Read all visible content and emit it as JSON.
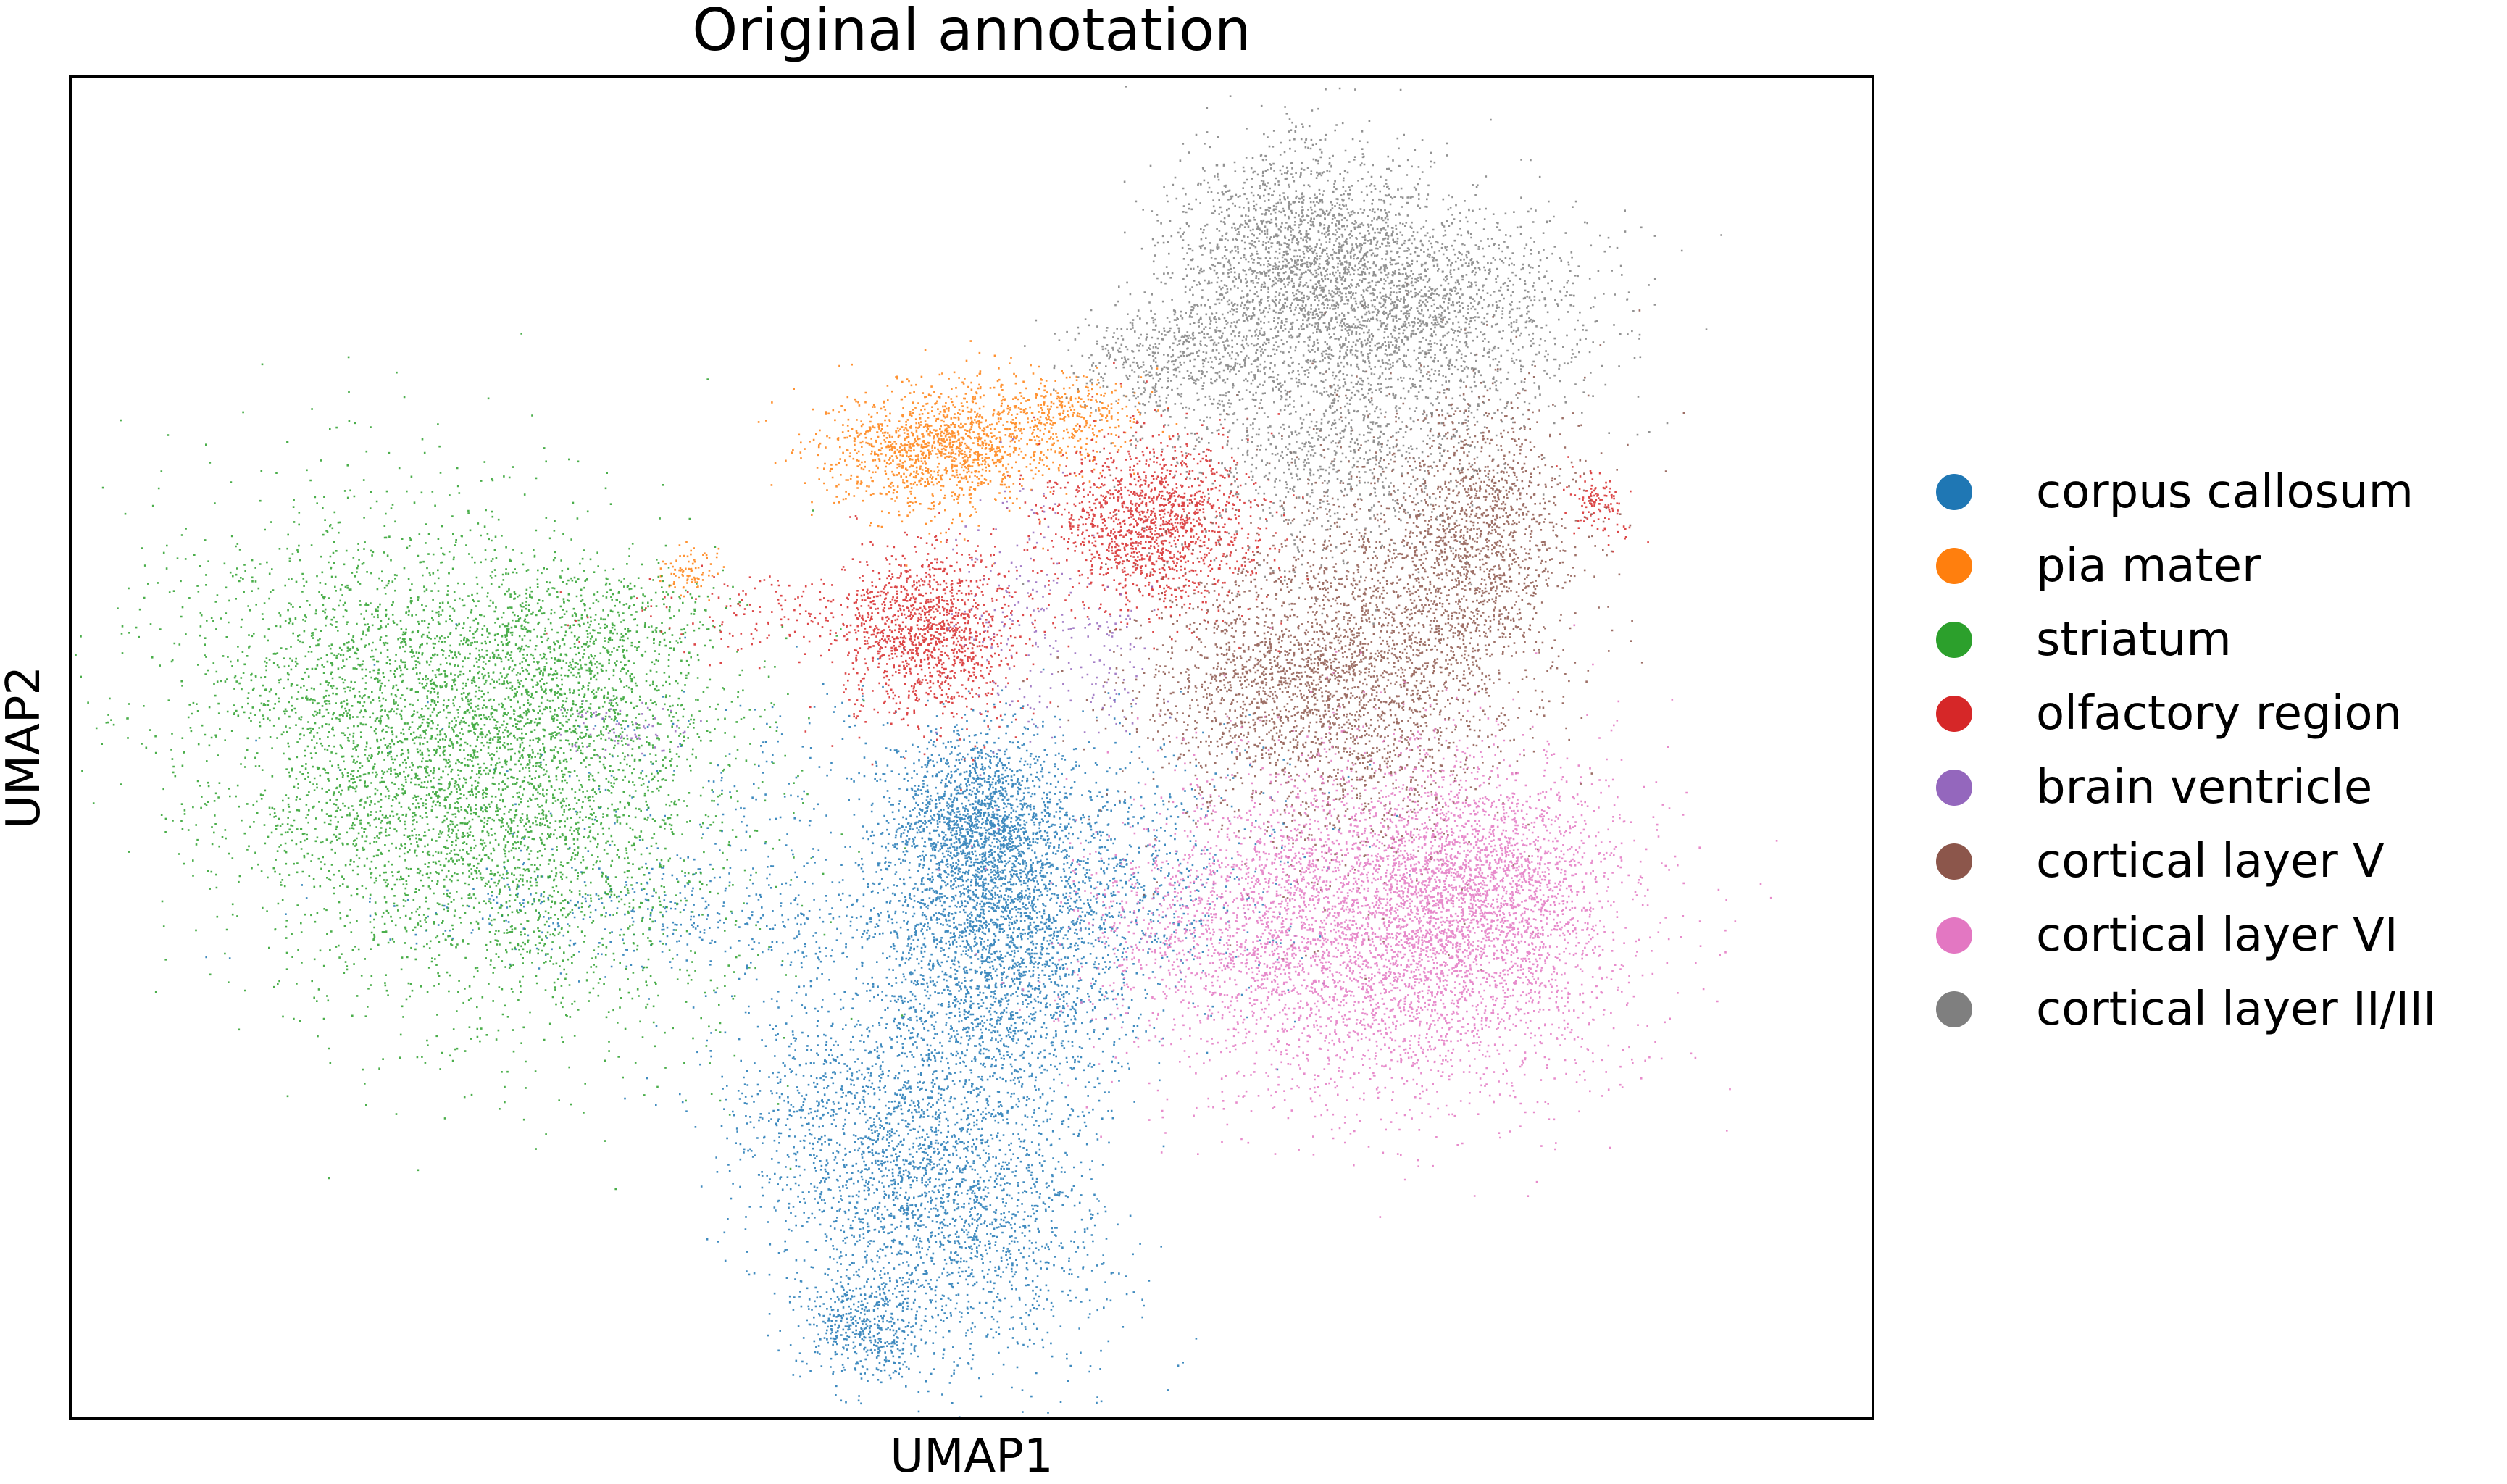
{
  "chart_data": {
    "type": "scatter",
    "title": "Original annotation",
    "xlabel": "UMAP1",
    "ylabel": "UMAP2",
    "xticks": [],
    "yticks": [],
    "xlim": [
      0,
      100
    ],
    "ylim": [
      0,
      100
    ],
    "grid": false,
    "legend_position": "right-outside",
    "series": [
      {
        "name": "corpus callosum",
        "color": "#1f77b4",
        "clusters": [
          {
            "cx": 50.3,
            "cy": 44.2,
            "sx": 2.2,
            "sy": 3.4,
            "rot": 0,
            "n": 1400
          },
          {
            "cx": 51.5,
            "cy": 33.8,
            "sx": 3.5,
            "sy": 6.5,
            "rot": 0,
            "n": 2400
          },
          {
            "cx": 47.8,
            "cy": 16.5,
            "sx": 4.0,
            "sy": 6.2,
            "rot": 0.4,
            "n": 2200
          },
          {
            "cx": 44.0,
            "cy": 6.8,
            "sx": 1.8,
            "sy": 2.0,
            "rot": 0,
            "n": 500
          },
          {
            "cx": 56.5,
            "cy": 40.0,
            "sx": 5.5,
            "sy": 4.5,
            "rot": 0,
            "n": 900
          },
          {
            "cx": 36.5,
            "cy": 37.5,
            "sx": 9.0,
            "sy": 2.0,
            "rot": 0,
            "n": 500
          },
          {
            "cx": 41.5,
            "cy": 24.5,
            "sx": 3.5,
            "sy": 5.0,
            "rot": 0,
            "n": 400
          },
          {
            "cx": 45.0,
            "cy": 46.5,
            "sx": 11.0,
            "sy": 4.0,
            "rot": 0,
            "n": 400
          }
        ]
      },
      {
        "name": "pia mater",
        "color": "#ff7f0e",
        "clusters": [
          {
            "cx": 48.5,
            "cy": 72.6,
            "sx": 3.2,
            "sy": 2.3,
            "rot": 0.15,
            "n": 1400
          },
          {
            "cx": 55.5,
            "cy": 75.0,
            "sx": 2.2,
            "sy": 1.5,
            "rot": 0,
            "n": 300
          },
          {
            "cx": 34.2,
            "cy": 63.0,
            "sx": 0.7,
            "sy": 0.8,
            "rot": 0,
            "n": 90
          }
        ]
      },
      {
        "name": "striatum",
        "color": "#2ca02c",
        "clusters": [
          {
            "cx": 21.5,
            "cy": 48.5,
            "sx": 6.8,
            "sy": 9.5,
            "rot": 0.35,
            "n": 5200
          },
          {
            "cx": 27.0,
            "cy": 55.0,
            "sx": 4.5,
            "sy": 4.0,
            "rot": 0,
            "n": 800
          },
          {
            "cx": 30.0,
            "cy": 60.0,
            "sx": 3.0,
            "sy": 1.8,
            "rot": 0,
            "n": 150
          }
        ]
      },
      {
        "name": "olfactory region",
        "color": "#d62728",
        "clusters": [
          {
            "cx": 47.5,
            "cy": 58.5,
            "sx": 2.5,
            "sy": 3.3,
            "rot": 0,
            "n": 1300
          },
          {
            "cx": 60.0,
            "cy": 66.5,
            "sx": 2.8,
            "sy": 3.3,
            "rot": 0.3,
            "n": 1500
          },
          {
            "cx": 84.8,
            "cy": 68.2,
            "sx": 0.7,
            "sy": 1.3,
            "rot": 0.4,
            "n": 120
          },
          {
            "cx": 41.0,
            "cy": 60.0,
            "sx": 5.5,
            "sy": 1.5,
            "rot": 0,
            "n": 200
          }
        ]
      },
      {
        "name": "brain ventricle",
        "color": "#9467bd",
        "clusters": [
          {
            "cx": 52.5,
            "cy": 60.0,
            "sx": 1.5,
            "sy": 5.0,
            "rot": 0,
            "n": 160
          },
          {
            "cx": 57.5,
            "cy": 57.0,
            "sx": 1.5,
            "sy": 3.0,
            "rot": 0,
            "n": 90
          },
          {
            "cx": 30.5,
            "cy": 51.5,
            "sx": 2.0,
            "sy": 1.2,
            "rot": 0,
            "n": 70
          }
        ]
      },
      {
        "name": "cortical layer V",
        "color": "#8c564b",
        "clusters": [
          {
            "cx": 73.0,
            "cy": 58.0,
            "sx": 4.5,
            "sy": 8.0,
            "rot": -0.2,
            "n": 2600
          },
          {
            "cx": 66.5,
            "cy": 54.5,
            "sx": 4.0,
            "sy": 4.5,
            "rot": 0,
            "n": 1100
          },
          {
            "cx": 78.5,
            "cy": 66.0,
            "sx": 2.2,
            "sy": 4.5,
            "rot": 0,
            "n": 900
          }
        ]
      },
      {
        "name": "cortical layer VI",
        "color": "#e377c2",
        "clusters": [
          {
            "cx": 73.5,
            "cy": 36.5,
            "sx": 6.5,
            "sy": 6.5,
            "rot": 0,
            "n": 4600
          },
          {
            "cx": 78.5,
            "cy": 40.0,
            "sx": 3.0,
            "sy": 4.0,
            "rot": 0,
            "n": 1200
          },
          {
            "cx": 63.5,
            "cy": 37.0,
            "sx": 4.0,
            "sy": 4.0,
            "rot": 0,
            "n": 600
          }
        ]
      },
      {
        "name": "cortical layer II/III",
        "color": "#7f7f7f",
        "clusters": [
          {
            "cx": 68.0,
            "cy": 86.5,
            "sx": 3.5,
            "sy": 4.5,
            "rot": 0,
            "n": 1800
          },
          {
            "cx": 74.5,
            "cy": 83.0,
            "sx": 5.0,
            "sy": 4.0,
            "rot": -0.2,
            "n": 2000
          },
          {
            "cx": 61.5,
            "cy": 79.0,
            "sx": 3.0,
            "sy": 2.3,
            "rot": 0,
            "n": 600
          },
          {
            "cx": 70.0,
            "cy": 72.0,
            "sx": 4.5,
            "sy": 4.0,
            "rot": 0,
            "n": 900
          }
        ]
      }
    ]
  }
}
